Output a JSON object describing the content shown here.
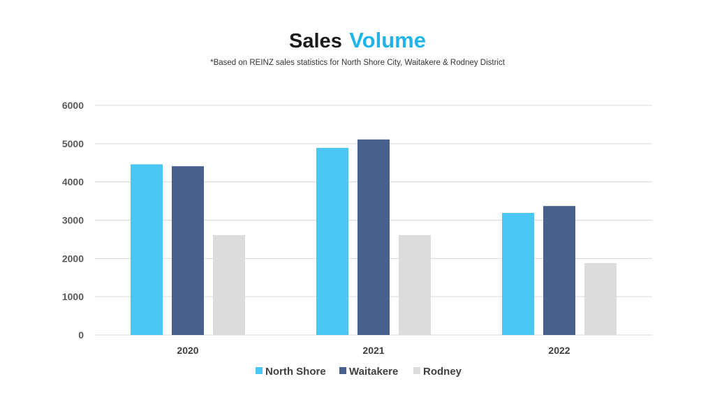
{
  "colors": {
    "title_accent": "#1fb5e8",
    "north_shore": "#4cc6f2",
    "waitakere": "#48608c",
    "rodney": "#dcdcdc",
    "gridline": "#d9d9d9"
  },
  "chart_data": {
    "type": "bar",
    "title": {
      "part1": "Sales",
      "part2": "Volume"
    },
    "subtitle": "*Based on REINZ sales statistics for North Shore City, Waitakere & Rodney District",
    "categories": [
      "2020",
      "2021",
      "2022"
    ],
    "series": [
      {
        "name": "North Shore",
        "values": [
          4460,
          4890,
          3190
        ]
      },
      {
        "name": "Waitakere",
        "values": [
          4410,
          5110,
          3370
        ]
      },
      {
        "name": "Rodney",
        "values": [
          2610,
          2610,
          1880
        ]
      }
    ],
    "ylim": [
      0,
      6000
    ],
    "yticks": [
      "0",
      "1000",
      "2000",
      "3000",
      "4000",
      "5000",
      "6000"
    ],
    "grid": true,
    "legend": "bottom"
  }
}
